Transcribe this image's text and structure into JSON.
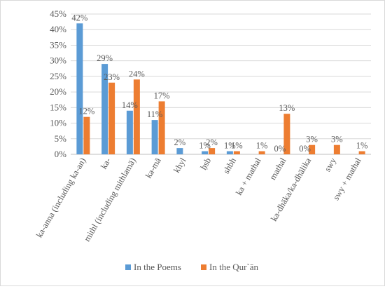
{
  "chart_data": {
    "type": "bar",
    "categories": [
      "ka-anna (including ka-an)",
      "ka-",
      "mithl (including mithlamā)",
      "ka-mā",
      "khyl",
      "ḥsb",
      "shbh",
      "ka + mathal",
      "mathal",
      "ka-dhāka/ka-dhālika",
      "swy",
      "swy + mathal"
    ],
    "series": [
      {
        "name": "In the Poems",
        "color": "#5b9bd5",
        "values": [
          42,
          29,
          14,
          11,
          2,
          1,
          1,
          0,
          0,
          0,
          0,
          0
        ],
        "labels": [
          "42%",
          "29%",
          "14%",
          "11%",
          "2%",
          "1%",
          "1%",
          "",
          "0%",
          "0%",
          "",
          ""
        ]
      },
      {
        "name": "In the Qur`ān",
        "color": "#ed7d31",
        "values": [
          12,
          23,
          24,
          17,
          0,
          2,
          1,
          1,
          13,
          3,
          3,
          1
        ],
        "labels": [
          "12%",
          "23%",
          "24%",
          "17%",
          "",
          "2%",
          "1%",
          "1%",
          "13%",
          "3%",
          "3%",
          "1%"
        ]
      }
    ],
    "y_ticks": [
      "0%",
      "5%",
      "10%",
      "15%",
      "20%",
      "25%",
      "30%",
      "35%",
      "40%",
      "45%"
    ],
    "ylim": [
      0,
      45
    ],
    "grid": true,
    "legend": "bottom"
  }
}
